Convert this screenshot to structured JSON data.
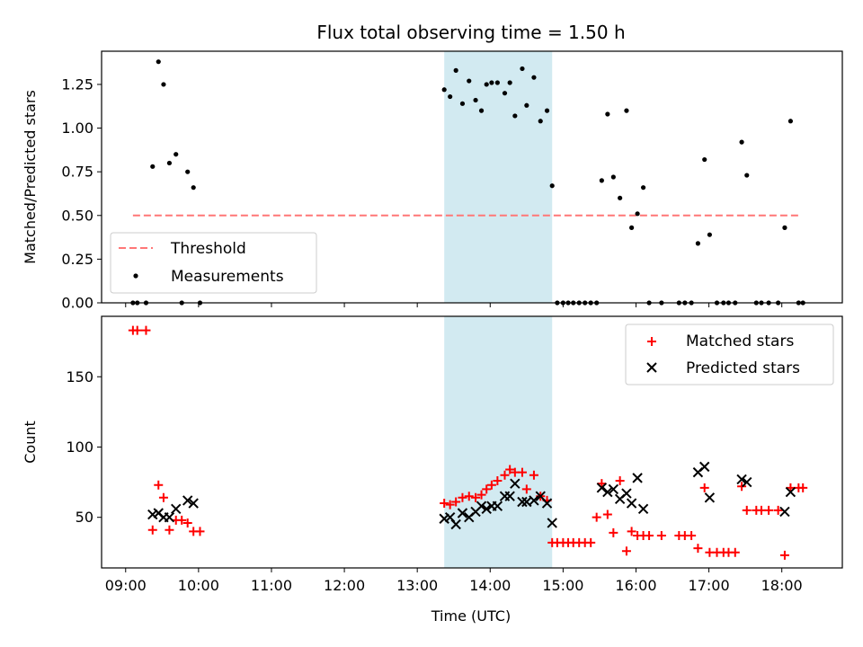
{
  "chart_data": {
    "type": "scatter",
    "title": "Flux total observing time = 1.50 h",
    "xlabel": "Time (UTC)",
    "x_unit": "hours UTC",
    "xlim": [
      8.67,
      18.83
    ],
    "x_ticks": [
      "09:00",
      "10:00",
      "11:00",
      "12:00",
      "13:00",
      "14:00",
      "15:00",
      "16:00",
      "17:00",
      "18:00"
    ],
    "x_tick_values": [
      9,
      10,
      11,
      12,
      13,
      14,
      15,
      16,
      17,
      18
    ],
    "shaded_interval": [
      13.37,
      14.85
    ],
    "shade_color": "#add8e6",
    "panels": [
      {
        "ylabel": "Matched/Predicted stars",
        "ylim": [
          0,
          1.44
        ],
        "y_ticks": [
          "0.00",
          "0.25",
          "0.50",
          "0.75",
          "1.00",
          "1.25"
        ],
        "y_tick_values": [
          0,
          0.25,
          0.5,
          0.75,
          1.0,
          1.25
        ],
        "legend": {
          "placement": "lower-left",
          "entries": [
            "Threshold",
            "Measurements"
          ]
        },
        "threshold": {
          "name": "Threshold",
          "y": 0.5,
          "x_range": [
            9.1,
            18.25
          ],
          "color": "#ff7777",
          "style": "dashed"
        },
        "series": [
          {
            "name": "Measurements",
            "marker": "dot",
            "color": "#000000",
            "x": [
              9.1,
              9.16,
              9.28,
              9.37,
              9.45,
              9.52,
              9.6,
              9.69,
              9.77,
              9.85,
              9.93,
              10.02,
              13.37,
              13.45,
              13.53,
              13.62,
              13.71,
              13.8,
              13.88,
              13.95,
              14.02,
              14.1,
              14.2,
              14.27,
              14.34,
              14.44,
              14.5,
              14.6,
              14.69,
              14.78,
              14.85,
              14.92,
              15.0,
              15.07,
              15.14,
              15.22,
              15.3,
              15.38,
              15.46,
              15.53,
              15.61,
              15.69,
              15.78,
              15.87,
              15.94,
              16.02,
              16.1,
              16.18,
              16.35,
              16.59,
              16.67,
              16.76,
              16.85,
              16.94,
              17.01,
              17.11,
              17.2,
              17.27,
              17.36,
              17.45,
              17.52,
              17.65,
              17.72,
              17.82,
              17.95,
              18.04,
              18.12,
              18.23,
              18.29
            ],
            "values": [
              0,
              0,
              0,
              0.78,
              1.38,
              1.25,
              0.8,
              0.85,
              0,
              0.75,
              0.66,
              0,
              1.22,
              1.18,
              1.33,
              1.14,
              1.27,
              1.16,
              1.1,
              1.25,
              1.26,
              1.26,
              1.2,
              1.26,
              1.07,
              1.34,
              1.13,
              1.29,
              1.04,
              1.1,
              0.67,
              0,
              0,
              0,
              0,
              0,
              0,
              0,
              0,
              0.7,
              1.08,
              0.72,
              0.6,
              1.1,
              0.43,
              0.51,
              0.66,
              0,
              0,
              0,
              0,
              0,
              0.34,
              0.82,
              0.39,
              0,
              0,
              0,
              0,
              0.92,
              0.73,
              0,
              0,
              0,
              0,
              0.43,
              1.04,
              0,
              0
            ]
          }
        ]
      },
      {
        "ylabel": "Count",
        "ylim": [
          14,
          193
        ],
        "y_ticks": [
          "50",
          "100",
          "150"
        ],
        "y_tick_values": [
          50,
          100,
          150
        ],
        "legend": {
          "placement": "upper-right",
          "entries": [
            "Matched stars",
            "Predicted stars"
          ]
        },
        "series": [
          {
            "name": "Matched stars",
            "marker": "plus",
            "color": "#ff0000",
            "x": [
              9.1,
              9.16,
              9.28,
              9.37,
              9.45,
              9.52,
              9.6,
              9.69,
              9.77,
              9.85,
              9.93,
              10.02,
              13.37,
              13.45,
              13.53,
              13.62,
              13.71,
              13.8,
              13.88,
              13.95,
              14.02,
              14.1,
              14.2,
              14.27,
              14.34,
              14.44,
              14.5,
              14.6,
              14.69,
              14.78,
              14.85,
              14.92,
              15.0,
              15.07,
              15.14,
              15.22,
              15.3,
              15.38,
              15.46,
              15.53,
              15.61,
              15.69,
              15.78,
              15.87,
              15.94,
              16.02,
              16.1,
              16.18,
              16.35,
              16.59,
              16.67,
              16.76,
              16.85,
              16.94,
              17.01,
              17.11,
              17.2,
              17.27,
              17.36,
              17.45,
              17.52,
              17.65,
              17.72,
              17.82,
              17.95,
              18.04,
              18.12,
              18.23,
              18.29
            ],
            "values": [
              183,
              183,
              183,
              41,
              73,
              64,
              41,
              48,
              48,
              46,
              40,
              40,
              60,
              59,
              61,
              64,
              65,
              64,
              66,
              70,
              73,
              76,
              80,
              84,
              82,
              82,
              70,
              80,
              65,
              62,
              32,
              32,
              32,
              32,
              32,
              32,
              32,
              32,
              50,
              74,
              52,
              39,
              76,
              26,
              40,
              37,
              37,
              37,
              37,
              37,
              37,
              37,
              28,
              71,
              25,
              25,
              25,
              25,
              25,
              72,
              55,
              55,
              55,
              55,
              55,
              23,
              71,
              71,
              71
            ]
          },
          {
            "name": "Predicted stars",
            "marker": "cross",
            "color": "#000000",
            "x": [
              9.37,
              9.45,
              9.52,
              9.6,
              9.69,
              9.85,
              9.93,
              13.37,
              13.45,
              13.53,
              13.62,
              13.71,
              13.8,
              13.88,
              13.95,
              14.02,
              14.1,
              14.2,
              14.27,
              14.34,
              14.44,
              14.5,
              14.6,
              14.69,
              14.78,
              14.85,
              15.53,
              15.61,
              15.69,
              15.78,
              15.87,
              15.94,
              16.02,
              16.1,
              16.85,
              16.94,
              17.01,
              17.45,
              17.52,
              18.04,
              18.12
            ],
            "values": [
              52,
              53,
              50,
              50,
              56,
              62,
              60,
              49,
              50,
              45,
              53,
              50,
              54,
              58,
              56,
              58,
              58,
              65,
              65,
              74,
              61,
              61,
              62,
              65,
              60,
              46,
              71,
              68,
              70,
              63,
              67,
              60,
              78,
              56,
              82,
              86,
              64,
              77,
              75,
              54,
              68
            ]
          }
        ]
      }
    ]
  }
}
